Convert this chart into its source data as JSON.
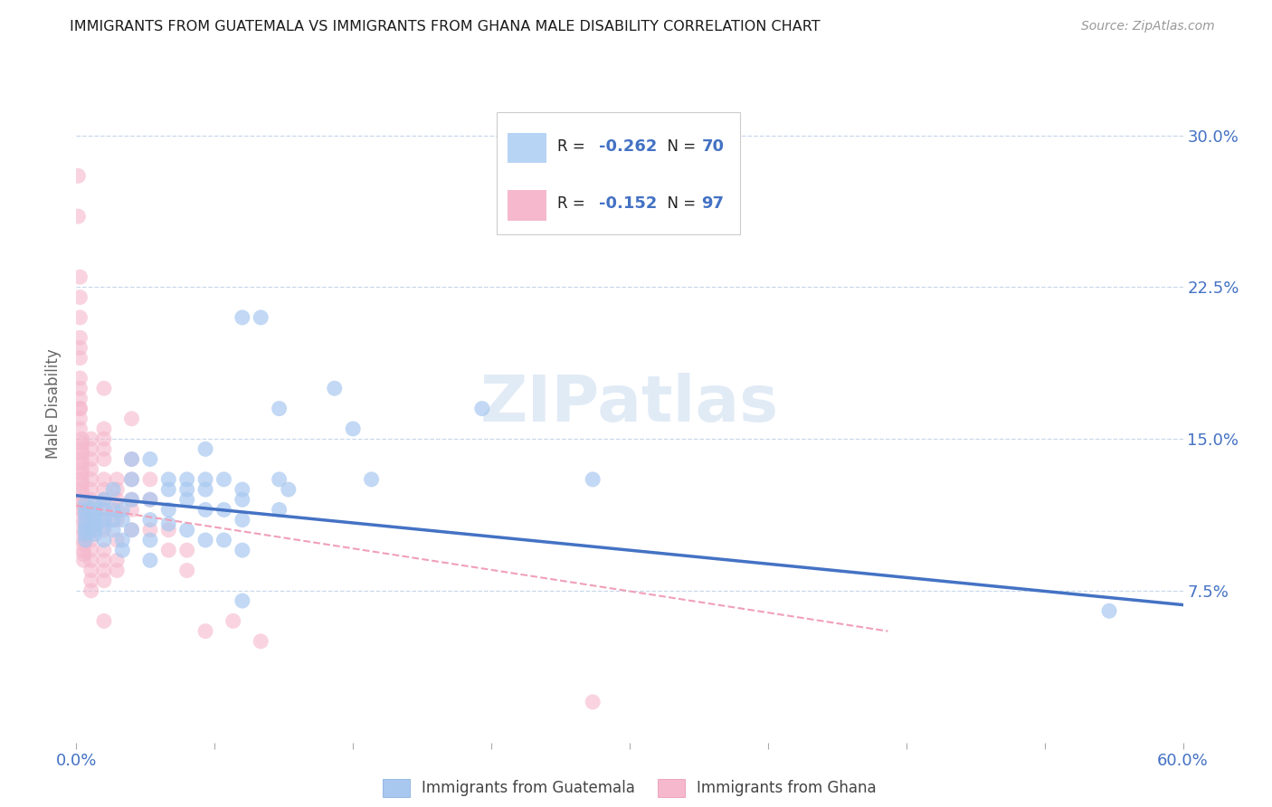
{
  "title": "IMMIGRANTS FROM GUATEMALA VS IMMIGRANTS FROM GHANA MALE DISABILITY CORRELATION CHART",
  "source": "Source: ZipAtlas.com",
  "ylabel": "Male Disability",
  "ytick_labels": [
    "7.5%",
    "15.0%",
    "22.5%",
    "30.0%"
  ],
  "ytick_values": [
    0.075,
    0.15,
    0.225,
    0.3
  ],
  "xlim": [
    0.0,
    0.6
  ],
  "ylim": [
    0.0,
    0.335
  ],
  "xticks": [
    0.0,
    0.075,
    0.15,
    0.225,
    0.3,
    0.375,
    0.45,
    0.525,
    0.6
  ],
  "watermark": "ZIPatlas",
  "legend_R_guatemala": "-0.262",
  "legend_N_guatemala": "70",
  "legend_R_ghana": "-0.152",
  "legend_N_ghana": "97",
  "guatemala_scatter_color": "#a8c8f0",
  "ghana_scatter_color": "#f5b8cc",
  "guatemala_line_color": "#4472c4",
  "ghana_line_color": "#f0a0b8",
  "legend_box_color_guatemala": "#b8d4f4",
  "legend_box_color_ghana": "#f5b8cc",
  "title_color": "#1a1a1a",
  "axis_label_color": "#4472c4",
  "tick_label_color": "#4472c4",
  "grid_color": "#c8d8ec",
  "background_color": "#ffffff",
  "legend_text_color": "#222222",
  "legend_value_color": "#4472c4",
  "guatemala_points": [
    [
      0.005,
      0.118
    ],
    [
      0.005,
      0.115
    ],
    [
      0.005,
      0.113
    ],
    [
      0.005,
      0.11
    ],
    [
      0.005,
      0.107
    ],
    [
      0.005,
      0.105
    ],
    [
      0.005,
      0.103
    ],
    [
      0.005,
      0.1
    ],
    [
      0.01,
      0.118
    ],
    [
      0.01,
      0.115
    ],
    [
      0.01,
      0.113
    ],
    [
      0.01,
      0.11
    ],
    [
      0.01,
      0.107
    ],
    [
      0.01,
      0.105
    ],
    [
      0.01,
      0.103
    ],
    [
      0.015,
      0.12
    ],
    [
      0.015,
      0.115
    ],
    [
      0.015,
      0.11
    ],
    [
      0.015,
      0.107
    ],
    [
      0.015,
      0.1
    ],
    [
      0.02,
      0.125
    ],
    [
      0.02,
      0.115
    ],
    [
      0.02,
      0.11
    ],
    [
      0.02,
      0.105
    ],
    [
      0.025,
      0.095
    ],
    [
      0.025,
      0.1
    ],
    [
      0.025,
      0.11
    ],
    [
      0.025,
      0.115
    ],
    [
      0.03,
      0.14
    ],
    [
      0.03,
      0.13
    ],
    [
      0.03,
      0.12
    ],
    [
      0.03,
      0.105
    ],
    [
      0.04,
      0.14
    ],
    [
      0.04,
      0.12
    ],
    [
      0.04,
      0.11
    ],
    [
      0.04,
      0.1
    ],
    [
      0.04,
      0.09
    ],
    [
      0.05,
      0.13
    ],
    [
      0.05,
      0.125
    ],
    [
      0.05,
      0.115
    ],
    [
      0.05,
      0.108
    ],
    [
      0.06,
      0.13
    ],
    [
      0.06,
      0.125
    ],
    [
      0.06,
      0.12
    ],
    [
      0.06,
      0.105
    ],
    [
      0.07,
      0.145
    ],
    [
      0.07,
      0.13
    ],
    [
      0.07,
      0.125
    ],
    [
      0.07,
      0.115
    ],
    [
      0.07,
      0.1
    ],
    [
      0.08,
      0.13
    ],
    [
      0.08,
      0.115
    ],
    [
      0.08,
      0.1
    ],
    [
      0.09,
      0.21
    ],
    [
      0.09,
      0.125
    ],
    [
      0.09,
      0.12
    ],
    [
      0.09,
      0.11
    ],
    [
      0.09,
      0.095
    ],
    [
      0.09,
      0.07
    ],
    [
      0.1,
      0.21
    ],
    [
      0.11,
      0.165
    ],
    [
      0.11,
      0.13
    ],
    [
      0.11,
      0.115
    ],
    [
      0.115,
      0.125
    ],
    [
      0.14,
      0.175
    ],
    [
      0.15,
      0.155
    ],
    [
      0.16,
      0.13
    ],
    [
      0.22,
      0.165
    ],
    [
      0.28,
      0.13
    ],
    [
      0.56,
      0.065
    ]
  ],
  "ghana_points": [
    [
      0.001,
      0.28
    ],
    [
      0.001,
      0.26
    ],
    [
      0.002,
      0.23
    ],
    [
      0.002,
      0.22
    ],
    [
      0.002,
      0.21
    ],
    [
      0.002,
      0.2
    ],
    [
      0.002,
      0.195
    ],
    [
      0.002,
      0.19
    ],
    [
      0.002,
      0.18
    ],
    [
      0.002,
      0.175
    ],
    [
      0.002,
      0.17
    ],
    [
      0.002,
      0.165
    ],
    [
      0.002,
      0.165
    ],
    [
      0.002,
      0.16
    ],
    [
      0.002,
      0.155
    ],
    [
      0.003,
      0.15
    ],
    [
      0.003,
      0.148
    ],
    [
      0.003,
      0.145
    ],
    [
      0.003,
      0.143
    ],
    [
      0.003,
      0.14
    ],
    [
      0.003,
      0.138
    ],
    [
      0.003,
      0.135
    ],
    [
      0.003,
      0.133
    ],
    [
      0.003,
      0.13
    ],
    [
      0.003,
      0.128
    ],
    [
      0.003,
      0.125
    ],
    [
      0.003,
      0.123
    ],
    [
      0.003,
      0.12
    ],
    [
      0.003,
      0.118
    ],
    [
      0.003,
      0.115
    ],
    [
      0.004,
      0.113
    ],
    [
      0.004,
      0.11
    ],
    [
      0.004,
      0.108
    ],
    [
      0.004,
      0.105
    ],
    [
      0.004,
      0.103
    ],
    [
      0.004,
      0.1
    ],
    [
      0.004,
      0.098
    ],
    [
      0.004,
      0.095
    ],
    [
      0.004,
      0.093
    ],
    [
      0.004,
      0.09
    ],
    [
      0.008,
      0.15
    ],
    [
      0.008,
      0.145
    ],
    [
      0.008,
      0.14
    ],
    [
      0.008,
      0.135
    ],
    [
      0.008,
      0.13
    ],
    [
      0.008,
      0.125
    ],
    [
      0.008,
      0.12
    ],
    [
      0.008,
      0.115
    ],
    [
      0.008,
      0.11
    ],
    [
      0.008,
      0.105
    ],
    [
      0.008,
      0.1
    ],
    [
      0.008,
      0.095
    ],
    [
      0.008,
      0.09
    ],
    [
      0.008,
      0.085
    ],
    [
      0.008,
      0.08
    ],
    [
      0.008,
      0.075
    ],
    [
      0.015,
      0.175
    ],
    [
      0.015,
      0.155
    ],
    [
      0.015,
      0.15
    ],
    [
      0.015,
      0.145
    ],
    [
      0.015,
      0.14
    ],
    [
      0.015,
      0.13
    ],
    [
      0.015,
      0.125
    ],
    [
      0.015,
      0.12
    ],
    [
      0.015,
      0.115
    ],
    [
      0.015,
      0.11
    ],
    [
      0.015,
      0.105
    ],
    [
      0.015,
      0.095
    ],
    [
      0.015,
      0.09
    ],
    [
      0.015,
      0.085
    ],
    [
      0.015,
      0.08
    ],
    [
      0.015,
      0.06
    ],
    [
      0.022,
      0.13
    ],
    [
      0.022,
      0.125
    ],
    [
      0.022,
      0.12
    ],
    [
      0.022,
      0.115
    ],
    [
      0.022,
      0.11
    ],
    [
      0.022,
      0.1
    ],
    [
      0.022,
      0.09
    ],
    [
      0.022,
      0.085
    ],
    [
      0.03,
      0.16
    ],
    [
      0.03,
      0.14
    ],
    [
      0.03,
      0.13
    ],
    [
      0.03,
      0.12
    ],
    [
      0.03,
      0.115
    ],
    [
      0.03,
      0.105
    ],
    [
      0.04,
      0.13
    ],
    [
      0.04,
      0.12
    ],
    [
      0.04,
      0.105
    ],
    [
      0.05,
      0.105
    ],
    [
      0.05,
      0.095
    ],
    [
      0.06,
      0.095
    ],
    [
      0.06,
      0.085
    ],
    [
      0.07,
      0.055
    ],
    [
      0.085,
      0.06
    ],
    [
      0.1,
      0.05
    ],
    [
      0.28,
      0.02
    ]
  ],
  "guatemala_line": {
    "x0": 0.0,
    "y0": 0.122,
    "x1": 0.6,
    "y1": 0.068
  },
  "ghana_line": {
    "x0": 0.0,
    "y0": 0.117,
    "x1": 0.44,
    "y1": 0.055
  }
}
